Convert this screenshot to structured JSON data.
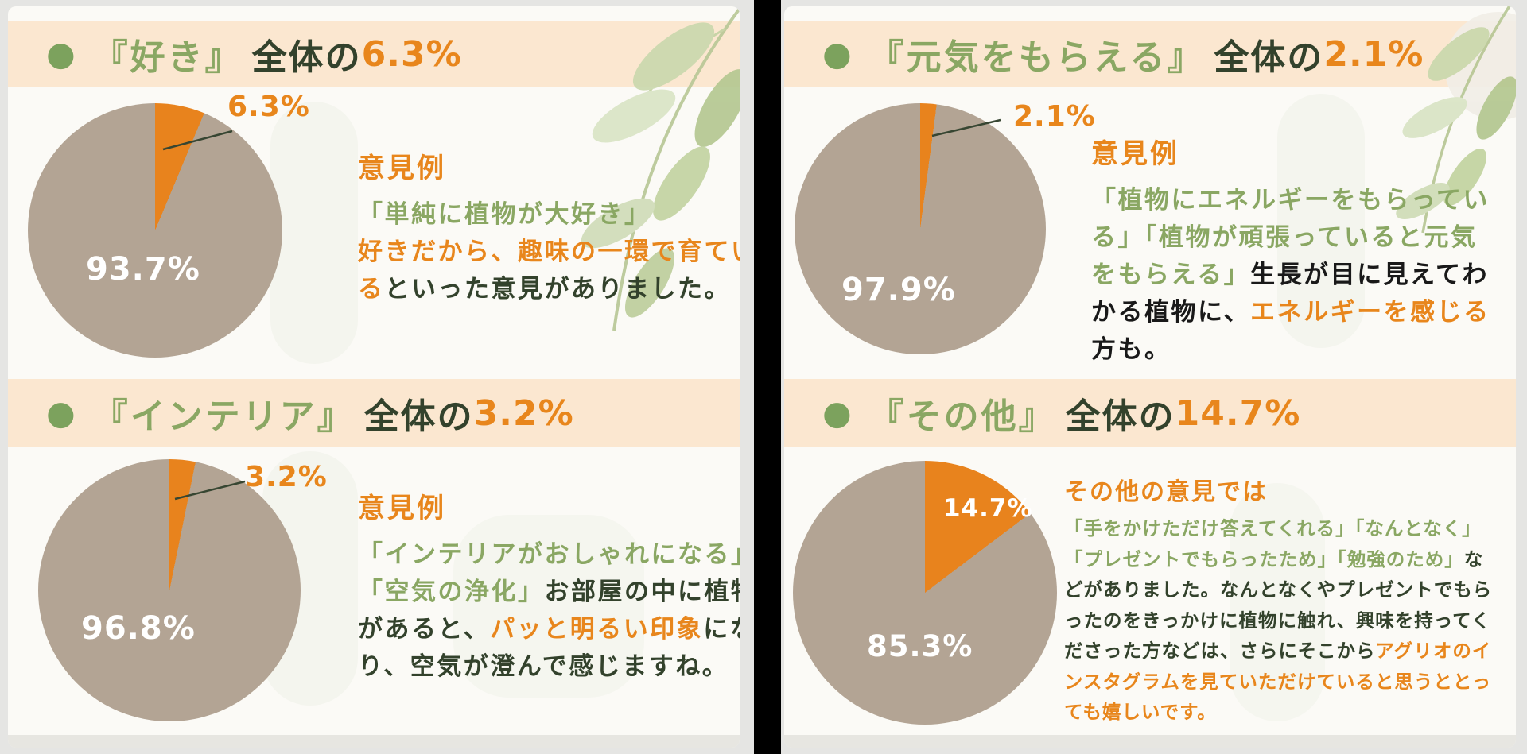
{
  "colors": {
    "band_bg": "#fbe7d0",
    "green": "#8aa763",
    "bullet_green": "#7ca25d",
    "dark_green": "#33422c",
    "orange": "#e8861c",
    "pie_orange": "#e8831d",
    "pie_taupe": "#b3a494",
    "white": "#ffffff",
    "card_bg": "#fbfaf6",
    "divider": "#000000"
  },
  "chart_data": [
    {
      "type": "pie",
      "title": "好き",
      "labels": [
        "6.3%",
        "93.7%"
      ],
      "values": [
        6.3,
        93.7
      ],
      "colors": [
        "#e8831d",
        "#b3a494"
      ],
      "start": "12-oclock",
      "direction": "clockwise",
      "legend": "none"
    },
    {
      "type": "pie",
      "title": "インテリア",
      "labels": [
        "3.2%",
        "96.8%"
      ],
      "values": [
        3.2,
        96.8
      ],
      "colors": [
        "#e8831d",
        "#b3a494"
      ],
      "start": "12-oclock",
      "direction": "clockwise",
      "legend": "none"
    },
    {
      "type": "pie",
      "title": "元気をもらえる",
      "labels": [
        "2.1%",
        "97.9%"
      ],
      "values": [
        2.1,
        97.9
      ],
      "colors": [
        "#e8831d",
        "#b3a494"
      ],
      "start": "12-oclock",
      "direction": "clockwise",
      "legend": "none"
    },
    {
      "type": "pie",
      "title": "その他",
      "labels": [
        "14.7%",
        "85.3%"
      ],
      "values": [
        14.7,
        85.3
      ],
      "colors": [
        "#e8831d",
        "#b3a494"
      ],
      "start": "12-oclock",
      "direction": "clockwise",
      "legend": "none"
    }
  ],
  "panels": [
    {
      "name": "left",
      "sections": [
        {
          "header": {
            "bullet": "●",
            "quoted": "『好き』",
            "label": "全体の",
            "value": "6.3%"
          },
          "pie": {
            "chart": 0,
            "outside_label": "6.3%",
            "inside_label": "93.7%"
          },
          "opinion": {
            "title": "意見例",
            "lines": [
              [
                {
                  "t": "「単純に植物が大好き」",
                  "c": "green"
                }
              ],
              [
                {
                  "t": "好きだから、趣味の一環で育てい",
                  "c": "orange"
                }
              ],
              [
                {
                  "t": "る",
                  "c": "orange"
                },
                {
                  "t": "といった意見がありました。",
                  "c": "dark"
                }
              ]
            ]
          }
        },
        {
          "header": {
            "bullet": "●",
            "quoted": "『インテリア』",
            "label": "全体の",
            "value": "3.2%"
          },
          "pie": {
            "chart": 1,
            "outside_label": "3.2%",
            "inside_label": "96.8%"
          },
          "opinion": {
            "title": "意見例",
            "lines": [
              [
                {
                  "t": "「インテリアがおしゃれになる」",
                  "c": "green"
                }
              ],
              [
                {
                  "t": "「空気の浄化」",
                  "c": "green"
                },
                {
                  "t": "お部屋の中に植物",
                  "c": "dark"
                }
              ],
              [
                {
                  "t": "があると、",
                  "c": "dark"
                },
                {
                  "t": "パッと明るい印象",
                  "c": "orange"
                },
                {
                  "t": "にな",
                  "c": "dark"
                }
              ],
              [
                {
                  "t": "り、空気が澄んで感じますね。",
                  "c": "dark"
                }
              ]
            ]
          }
        }
      ]
    },
    {
      "name": "right",
      "sections": [
        {
          "header": {
            "bullet": "●",
            "quoted": "『元気をもらえる』",
            "label": "全体の",
            "value": "2.1%"
          },
          "pie": {
            "chart": 2,
            "outside_label": "2.1%",
            "inside_label": "97.9%"
          },
          "opinion": {
            "title": "意見例",
            "lines": [
              [
                {
                  "t": "「植物にエネルギーをもらってい",
                  "c": "green"
                }
              ],
              [
                {
                  "t": "る」「植物が頑張っていると元気",
                  "c": "green"
                }
              ],
              [
                {
                  "t": "をもらえる」",
                  "c": "green"
                },
                {
                  "t": "生長が目に見えてわ",
                  "c": "black"
                }
              ],
              [
                {
                  "t": "かる植物に、",
                  "c": "black"
                },
                {
                  "t": "エネルギーを感じる",
                  "c": "orange"
                }
              ],
              [
                {
                  "t": "方も。",
                  "c": "black"
                }
              ]
            ]
          }
        },
        {
          "header": {
            "bullet": "●",
            "quoted": "『その他』",
            "label": "全体の",
            "value": "14.7%"
          },
          "pie": {
            "chart": 3,
            "slice_label": "14.7%",
            "inside_label": "85.3%"
          },
          "opinion": {
            "title": "その他の意見では",
            "lines": [
              [
                {
                  "t": "「手をかけただけ答えてくれる」「なんとなく」",
                  "c": "green"
                }
              ],
              [
                {
                  "t": "「プレゼントでもらったため」「勉強のため」",
                  "c": "green"
                },
                {
                  "t": "な",
                  "c": "dark"
                }
              ],
              [
                {
                  "t": "どがありました。なんとなくやプレゼントでもら",
                  "c": "dark"
                }
              ],
              [
                {
                  "t": "ったのをきっかけに植物に触れ、興味を持ってく",
                  "c": "dark"
                }
              ],
              [
                {
                  "t": "ださった方などは、さらにそこから",
                  "c": "dark"
                },
                {
                  "t": "アグリオのイ",
                  "c": "orange"
                }
              ],
              [
                {
                  "t": "ンスタグラムを見ていただけていると思うととっ",
                  "c": "orange"
                }
              ],
              [
                {
                  "t": "ても嬉しいです。",
                  "c": "orange"
                }
              ]
            ]
          }
        }
      ]
    }
  ]
}
